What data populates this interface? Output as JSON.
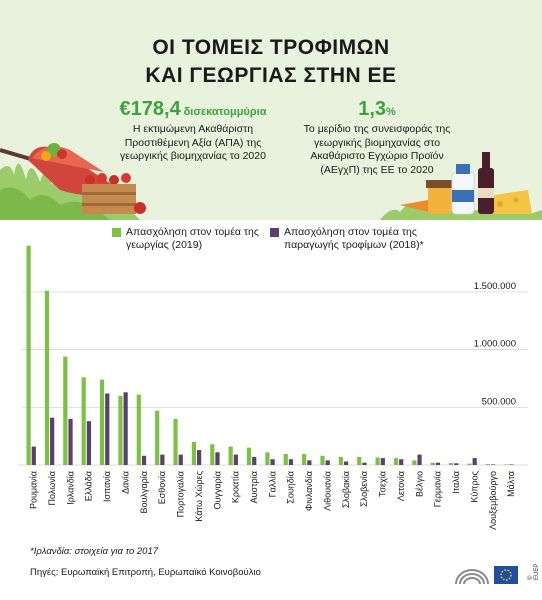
{
  "title_line1": "ΟΙ ΤΟΜΕΙΣ ΤΡΟΦΙΜΩΝ",
  "title_line2": "ΚΑΙ ΓΕΩΡΓΙΑΣ ΣΤΗΝ ΕΕ",
  "stat1": {
    "value": "€178,4",
    "unit": "δισεκατομμύρια",
    "desc": "Η εκτιμώμενη Ακαθάριστη Προστιθέμενη Αξία (ΑΠΑ) της γεωργικής βιομηχανίας το 2020"
  },
  "stat2": {
    "value": "1,3",
    "unit": "%",
    "desc": "Το μερίδιο της συνεισφοράς της γεωργικής βιομηχανίας στο Ακαθάριστο Εγχώριο Προϊόν (ΑΕγχΠ) της ΕΕ το 2020"
  },
  "footnote": "*Ιρλανδία: στοιχεία για το 2017",
  "sources": "Πηγές: Ευρωπαϊκή Επιτροπή, Ευρωπαϊκό Κοινοβούλιο",
  "logo_text": "© EUEP",
  "colors": {
    "header_bg": "#e8f2dc",
    "agriculture": "#7cc242",
    "food": "#5e3e6b",
    "accent": "#3ea33c"
  },
  "chart_data": {
    "type": "bar",
    "categories": [
      "Ρουμανία",
      "Πολωνία",
      "Ιρλανδία",
      "Ελλάδα",
      "Ισπανία",
      "Δανία",
      "Βουλγαρία",
      "Εσθονία",
      "Πορτογαλία",
      "Κάτω Χώρες",
      "Ουγγαρία",
      "Κροατία",
      "Αυστρία",
      "Γαλλία",
      "Σουηδία",
      "Φινλανδία",
      "Λιθουανία",
      "Σλοβακία",
      "Σλοβενία",
      "Τσεχία",
      "Λετονία",
      "Βέλγιο",
      "Γερμανία",
      "Ιταλία",
      "Κύπρος",
      "Λουξεμβούργο",
      "Μάλτα"
    ],
    "series": [
      {
        "name": "Απασχόληση στον τομέα της γεωργίας (2019)",
        "values": [
          1900000,
          1510000,
          940000,
          760000,
          740000,
          600000,
          610000,
          470000,
          400000,
          200000,
          180000,
          160000,
          150000,
          110000,
          95000,
          95000,
          80000,
          70000,
          70000,
          65000,
          60000,
          40000,
          20000,
          18000,
          12000,
          8000,
          5000
        ]
      },
      {
        "name": "Απασχόληση στον τομέα της παραγωγής τροφίμων (2018)*",
        "values": [
          160000,
          410000,
          400000,
          380000,
          620000,
          630000,
          80000,
          90000,
          90000,
          130000,
          110000,
          90000,
          70000,
          50000,
          50000,
          40000,
          40000,
          30000,
          20000,
          60000,
          50000,
          90000,
          20000,
          15000,
          60000,
          5000,
          5000
        ]
      }
    ],
    "y_ticks": [
      "500.000",
      "1.000.000",
      "1.500.000"
    ],
    "y_tick_values": [
      500000,
      1000000,
      1500000
    ],
    "ylim": [
      0,
      1950000
    ],
    "grid": true,
    "legend_position": "top"
  }
}
